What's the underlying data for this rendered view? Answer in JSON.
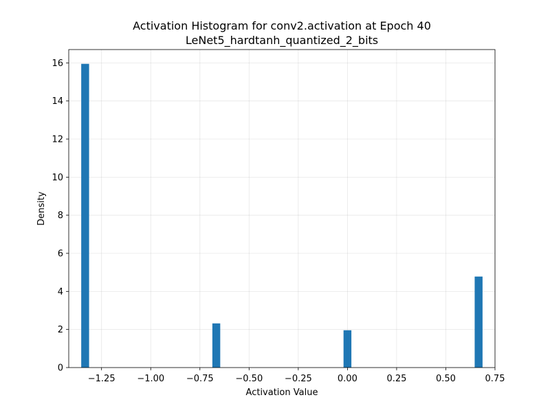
{
  "chart_data": {
    "type": "bar",
    "title": "Activation Histogram for conv2.activation at Epoch 40",
    "subtitle": "LeNet5_hardtanh_quantized_2_bits",
    "xlabel": "Activation Value",
    "ylabel": "Density",
    "xlim": [
      -1.4167,
      0.75
    ],
    "ylim": [
      0,
      16.7
    ],
    "xticks": [
      -1.25,
      -1.0,
      -0.75,
      -0.5,
      -0.25,
      0.0,
      0.25,
      0.5,
      0.75
    ],
    "xtick_labels": [
      "−1.25",
      "−1.00",
      "−0.75",
      "−0.50",
      "−0.25",
      "0.00",
      "0.25",
      "0.50",
      "0.75"
    ],
    "yticks": [
      0,
      2,
      4,
      6,
      8,
      10,
      12,
      14,
      16
    ],
    "ytick_labels": [
      "0",
      "2",
      "4",
      "6",
      "8",
      "10",
      "12",
      "14",
      "16"
    ],
    "grid": true,
    "bar_color": "#1f77b4",
    "bin_width": 0.04,
    "bins": [
      {
        "x": -1.3333,
        "value": 15.95
      },
      {
        "x": -0.6667,
        "value": 2.32
      },
      {
        "x": 0.0,
        "value": 1.96
      },
      {
        "x": 0.6667,
        "value": 4.78
      }
    ]
  }
}
